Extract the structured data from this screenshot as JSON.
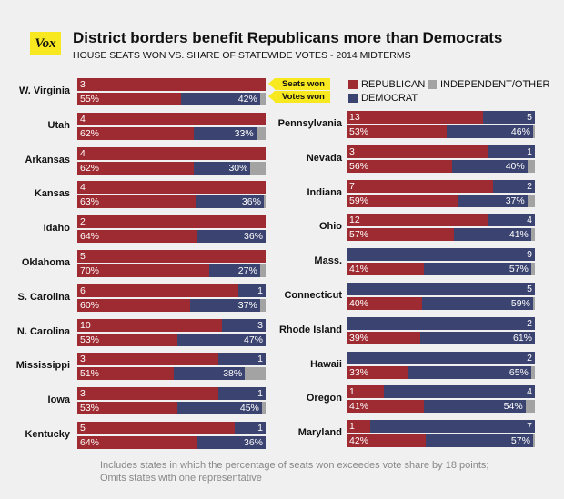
{
  "header": {
    "logo": "Vox",
    "title": "District borders benefit Republicans more than Democrats",
    "subtitle": "HOUSE SEATS WON VS. SHARE OF STATEWIDE VOTES - 2014 MIDTERMS"
  },
  "legend": {
    "republican": "REPUBLICAN",
    "independent": "INDEPENDENT/OTHER",
    "democrat": "DEMOCRAT"
  },
  "callouts": {
    "seats": "Seats won",
    "votes": "Votes won"
  },
  "colors": {
    "republican": "#9e2b31",
    "democrat": "#3b4470",
    "other": "#a3a3a3",
    "highlight": "#f7e81f"
  },
  "footnote": {
    "line1": "Includes states in which the percentage of seats won exceedes vote share by 18 points;",
    "line2": "Omits states with one representative"
  },
  "chart_data": {
    "type": "bar",
    "orientation": "horizontal-stacked",
    "description_units": "seats = House seats won (count); votes = share of statewide votes (%)",
    "states": [
      {
        "state": "W. Virginia",
        "column": "left",
        "seats": {
          "rep": 3,
          "dem": 0
        },
        "votes": {
          "rep": 55,
          "dem": 42,
          "other": 3
        },
        "rep_vote_label": "55%",
        "dem_vote_label": "42%"
      },
      {
        "state": "Utah",
        "column": "left",
        "seats": {
          "rep": 4,
          "dem": 0
        },
        "votes": {
          "rep": 62,
          "dem": 33,
          "other": 5
        },
        "rep_vote_label": "62%",
        "dem_vote_label": "33%"
      },
      {
        "state": "Arkansas",
        "column": "left",
        "seats": {
          "rep": 4,
          "dem": 0
        },
        "votes": {
          "rep": 62,
          "dem": 30,
          "other": 8
        },
        "rep_vote_label": "62%",
        "dem_vote_label": "30%"
      },
      {
        "state": "Kansas",
        "column": "left",
        "seats": {
          "rep": 4,
          "dem": 0
        },
        "votes": {
          "rep": 63,
          "dem": 36,
          "other": 1
        },
        "rep_vote_label": "63%",
        "dem_vote_label": "36%"
      },
      {
        "state": "Idaho",
        "column": "left",
        "seats": {
          "rep": 2,
          "dem": 0
        },
        "votes": {
          "rep": 64,
          "dem": 36,
          "other": 0
        },
        "rep_vote_label": "64%",
        "dem_vote_label": "36%"
      },
      {
        "state": "Oklahoma",
        "column": "left",
        "seats": {
          "rep": 5,
          "dem": 0
        },
        "votes": {
          "rep": 70,
          "dem": 27,
          "other": 3
        },
        "rep_vote_label": "70%",
        "dem_vote_label": "27%"
      },
      {
        "state": "S. Carolina",
        "column": "left",
        "seats": {
          "rep": 6,
          "dem": 1
        },
        "votes": {
          "rep": 60,
          "dem": 37,
          "other": 3
        },
        "rep_vote_label": "60%",
        "dem_vote_label": "37%"
      },
      {
        "state": "N. Carolina",
        "column": "left",
        "seats": {
          "rep": 10,
          "dem": 3
        },
        "votes": {
          "rep": 53,
          "dem": 47,
          "other": 0
        },
        "rep_vote_label": "53%",
        "dem_vote_label": "47%"
      },
      {
        "state": "Mississippi",
        "column": "left",
        "seats": {
          "rep": 3,
          "dem": 1
        },
        "votes": {
          "rep": 51,
          "dem": 38,
          "other": 11
        },
        "rep_vote_label": "51%",
        "dem_vote_label": "38%"
      },
      {
        "state": "Iowa",
        "column": "left",
        "seats": {
          "rep": 3,
          "dem": 1
        },
        "votes": {
          "rep": 53,
          "dem": 45,
          "other": 2
        },
        "rep_vote_label": "53%",
        "dem_vote_label": "45%"
      },
      {
        "state": "Kentucky",
        "column": "left",
        "seats": {
          "rep": 5,
          "dem": 1
        },
        "votes": {
          "rep": 64,
          "dem": 36,
          "other": 0
        },
        "rep_vote_label": "64%",
        "dem_vote_label": "36%"
      },
      {
        "state": "Pennsylvania",
        "column": "right",
        "seats": {
          "rep": 13,
          "dem": 5
        },
        "votes": {
          "rep": 53,
          "dem": 46,
          "other": 1
        },
        "rep_vote_label": "53%",
        "dem_vote_label": "46%"
      },
      {
        "state": "Nevada",
        "column": "right",
        "seats": {
          "rep": 3,
          "dem": 1
        },
        "votes": {
          "rep": 56,
          "dem": 40,
          "other": 4
        },
        "rep_vote_label": "56%",
        "dem_vote_label": "40%"
      },
      {
        "state": "Indiana",
        "column": "right",
        "seats": {
          "rep": 7,
          "dem": 2
        },
        "votes": {
          "rep": 59,
          "dem": 37,
          "other": 4
        },
        "rep_vote_label": "59%",
        "dem_vote_label": "37%"
      },
      {
        "state": "Ohio",
        "column": "right",
        "seats": {
          "rep": 12,
          "dem": 4
        },
        "votes": {
          "rep": 57,
          "dem": 41,
          "other": 2
        },
        "rep_vote_label": "57%",
        "dem_vote_label": "41%"
      },
      {
        "state": "Mass.",
        "column": "right",
        "seats": {
          "rep": 0,
          "dem": 9
        },
        "votes": {
          "rep": 41,
          "dem": 57,
          "other": 2
        },
        "rep_vote_label": "41%",
        "dem_vote_label": "57%"
      },
      {
        "state": "Connecticut",
        "column": "right",
        "seats": {
          "rep": 0,
          "dem": 5
        },
        "votes": {
          "rep": 40,
          "dem": 59,
          "other": 1
        },
        "rep_vote_label": "40%",
        "dem_vote_label": "59%"
      },
      {
        "state": "Rhode Island",
        "column": "right",
        "seats": {
          "rep": 0,
          "dem": 2
        },
        "votes": {
          "rep": 39,
          "dem": 61,
          "other": 0
        },
        "rep_vote_label": "39%",
        "dem_vote_label": "61%"
      },
      {
        "state": "Hawaii",
        "column": "right",
        "seats": {
          "rep": 0,
          "dem": 2
        },
        "votes": {
          "rep": 33,
          "dem": 65,
          "other": 2
        },
        "rep_vote_label": "33%",
        "dem_vote_label": "65%"
      },
      {
        "state": "Oregon",
        "column": "right",
        "seats": {
          "rep": 1,
          "dem": 4
        },
        "votes": {
          "rep": 41,
          "dem": 54,
          "other": 5
        },
        "rep_vote_label": "41%",
        "dem_vote_label": "54%"
      },
      {
        "state": "Maryland",
        "column": "right",
        "seats": {
          "rep": 1,
          "dem": 7
        },
        "votes": {
          "rep": 42,
          "dem": 57,
          "other": 1
        },
        "rep_vote_label": "42%",
        "dem_vote_label": "57%"
      }
    ]
  }
}
